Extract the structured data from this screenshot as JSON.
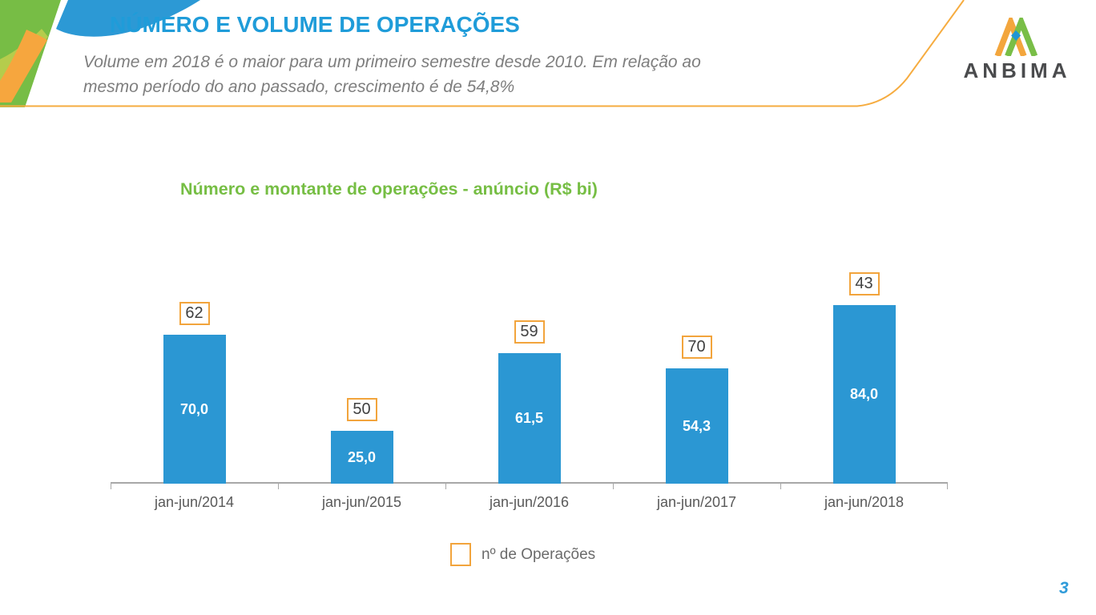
{
  "header": {
    "title": "NÚMERO E VOLUME DE OPERAÇÕES",
    "subtitle_line1": "Volume em 2018 é o maior para um primeiro semestre desde 2010. Em relação ao",
    "subtitle_line2": "mesmo período do ano passado, crescimento é de 54,8%"
  },
  "logo": {
    "text": "ANBIMA",
    "mark_icon": "anbima-double-chevron-diamond-icon"
  },
  "brand_colors": {
    "blue": "#2B97D3",
    "green": "#77BD45",
    "orange": "#F6A63E",
    "title_blue": "#1F9CD9",
    "title_green": "#76BE44"
  },
  "chart_data": {
    "type": "bar",
    "title": "Número e montante de operações - anúncio (R$ bi)",
    "categories": [
      "jan-jun/2014",
      "jan-jun/2015",
      "jan-jun/2016",
      "jan-jun/2017",
      "jan-jun/2018"
    ],
    "series": [
      {
        "name": "montante de operações (R$ bi)",
        "role": "bars",
        "values": [
          70.0,
          25.0,
          61.5,
          54.3,
          84.0
        ],
        "labels": [
          "70,0",
          "25,0",
          "61,5",
          "54,3",
          "84,0"
        ]
      },
      {
        "name": "nº de Operações",
        "role": "boxed-labels-above-bars",
        "values": [
          62,
          50,
          59,
          70,
          43
        ]
      }
    ],
    "legend": {
      "position": "bottom",
      "entries": [
        {
          "label": "nº de Operações",
          "swatch": "orange-outlined-square"
        }
      ]
    },
    "ylim": [
      0,
      90
    ],
    "grid": false,
    "y_axis_shown": false,
    "colors": {
      "bar": "#2B97D3",
      "bar_label": "#FFFFFF",
      "box_border": "#F2A43C",
      "box_text": "#404040",
      "axis": "#A8A8A8",
      "tick_label": "#595959",
      "title": "#76BE44"
    }
  },
  "footer": {
    "page_number": "3"
  }
}
